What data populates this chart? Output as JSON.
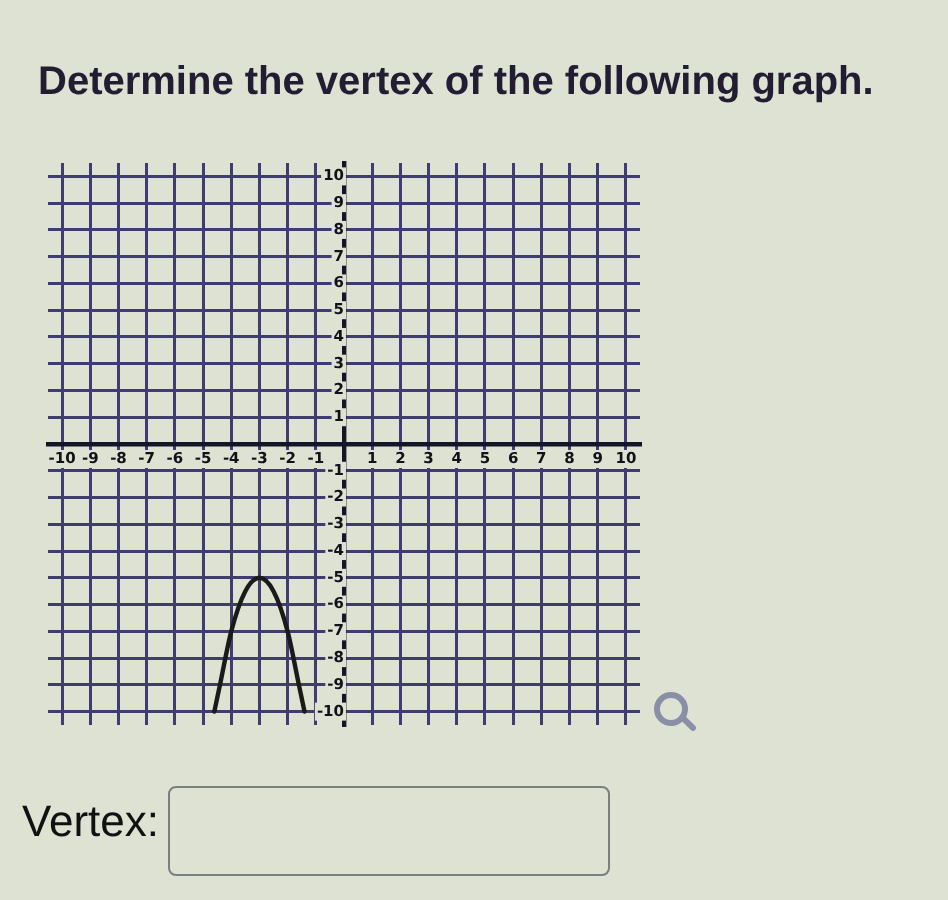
{
  "chart_data": {
    "type": "line",
    "title": "Determine the vertex of the following graph.",
    "annotations": [
      "Vertex:"
    ],
    "x": [
      -4.6,
      -4.4,
      -4,
      -3.5,
      -3,
      -2.5,
      -2,
      -1.6,
      -1.4
    ],
    "values": [
      -10,
      -9,
      -7,
      -5.5,
      -5,
      -5.5,
      -7,
      -9,
      -10
    ],
    "color": "#1a1a1a",
    "marker": "none",
    "line_style": "solid",
    "xlim": [
      -10.5,
      10.5
    ],
    "ylim": [
      -10.5,
      10.5
    ],
    "xticks": [
      -10,
      -9,
      -8,
      -7,
      -6,
      -5,
      -4,
      -3,
      -2,
      -1,
      {
        "value": 0,
        "label": null
      },
      1,
      2,
      3,
      4,
      5,
      6,
      7,
      8,
      9,
      10
    ],
    "yticks": [
      -10,
      -9,
      -8,
      -7,
      -6,
      -5,
      -4,
      -3,
      -2,
      -1,
      {
        "value": 0,
        "label": null
      },
      1,
      2,
      3,
      4,
      5,
      6,
      7,
      8,
      9,
      10
    ],
    "grid": true
  }
}
